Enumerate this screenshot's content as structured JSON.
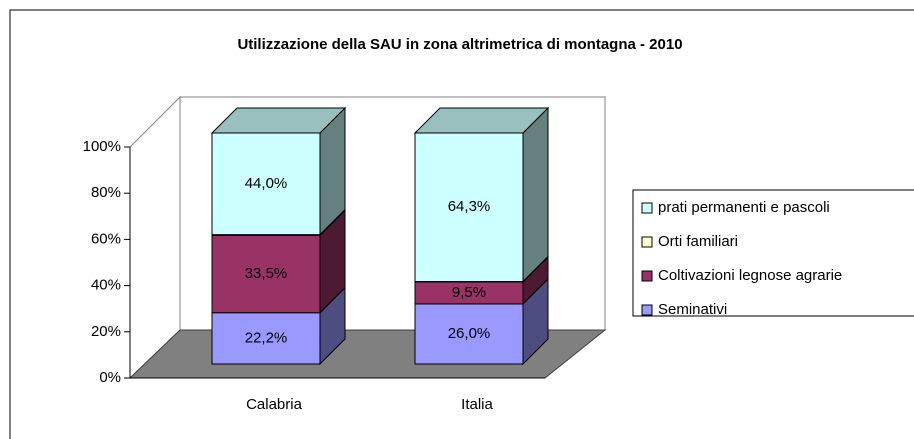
{
  "chart_data": {
    "type": "bar3d_stacked",
    "title": "Utilizzazione della SAU in zona altrimetrica di montagna  - 2010",
    "categories": [
      "Calabria",
      "Italia"
    ],
    "series": [
      {
        "name": "Seminativi",
        "color": "#9999ff",
        "values": [
          22.2,
          26.0
        ],
        "value_labels": [
          "22,2%",
          "26,0%"
        ]
      },
      {
        "name": "Coltivazioni legnose agrarie",
        "color": "#993366",
        "values": [
          33.5,
          9.5
        ],
        "value_labels": [
          "33,5%",
          "9,5%"
        ]
      },
      {
        "name": "Orti familiari",
        "color": "#ffffcc",
        "values": [
          0.3,
          0.2
        ],
        "value_labels": [
          null,
          null
        ]
      },
      {
        "name": "prati permanenti e pascoli",
        "color": "#ccffff",
        "values": [
          44.0,
          64.3
        ],
        "value_labels": [
          "44,0%",
          "64,3%"
        ]
      }
    ],
    "stacked": true,
    "ylim": [
      0,
      100
    ],
    "yticks": [
      {
        "value": 0,
        "label": "0%"
      },
      {
        "value": 20,
        "label": "20%"
      },
      {
        "value": 40,
        "label": "40%"
      },
      {
        "value": 60,
        "label": "60%"
      },
      {
        "value": 80,
        "label": "80%"
      },
      {
        "value": 100,
        "label": "100%"
      }
    ],
    "legend": "right"
  }
}
